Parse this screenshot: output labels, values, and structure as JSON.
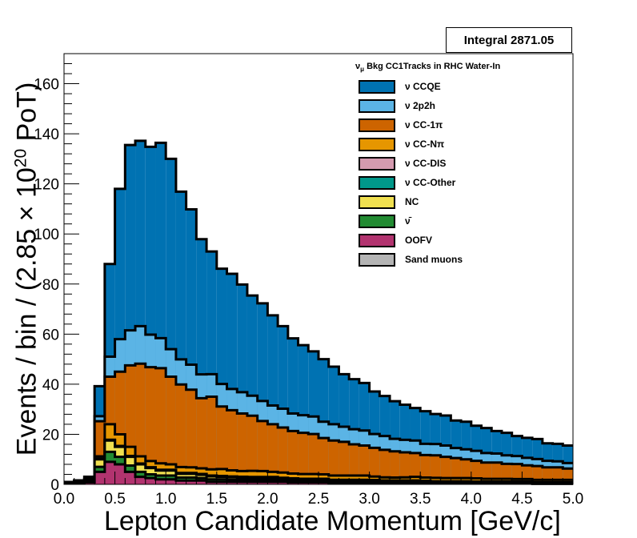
{
  "integral_box": {
    "text": "Integral 2871.05"
  },
  "legend": {
    "title_prefix": "ν",
    "title_sub": "μ",
    "title_rest": " Bkg CC1Tracks in RHC Water-In"
  },
  "y_title": {
    "before": "Events / bin / (2.85 × 10",
    "exp": "20",
    "after": " PoT)"
  },
  "chart_data": {
    "type": "bar",
    "stacked": true,
    "xlabel": "Lepton Candidate Momentum [GeV/c]",
    "ylabel": "Events / bin / (2.85 × 10^20 PoT)",
    "xlim": [
      0,
      5
    ],
    "ylim": [
      0,
      172
    ],
    "x_ticks": [
      "0.0",
      "0.5",
      "1.0",
      "1.5",
      "2.0",
      "2.5",
      "3.0",
      "3.5",
      "4.0",
      "4.5",
      "5.0"
    ],
    "y_ticks": [
      "0",
      "20",
      "40",
      "60",
      "80",
      "100",
      "120",
      "140",
      "160"
    ],
    "bin_edges": [
      0.0,
      0.1,
      0.2,
      0.3,
      0.4,
      0.5,
      0.6,
      0.7,
      0.8,
      0.9,
      1.0,
      1.1,
      1.2,
      1.3,
      1.4,
      1.5,
      1.6,
      1.7,
      1.8,
      1.9,
      2.0,
      2.1,
      2.2,
      2.3,
      2.4,
      2.5,
      2.6,
      2.7,
      2.8,
      2.9,
      3.0,
      3.1,
      3.2,
      3.3,
      3.4,
      3.5,
      3.6,
      3.7,
      3.8,
      3.9,
      4.0,
      4.1,
      4.2,
      4.3,
      4.4,
      4.5,
      4.6,
      4.7,
      4.8,
      4.9,
      5.0
    ],
    "series": [
      {
        "name": "Sand muons",
        "color": "#b4b4b4",
        "values": [
          0,
          0,
          0,
          0,
          0,
          0,
          0,
          0,
          0,
          0,
          0,
          0,
          0,
          0,
          0,
          0,
          0,
          0,
          0,
          0,
          0,
          0,
          0,
          0,
          0,
          0,
          0,
          0,
          0,
          0,
          0,
          0,
          0,
          0,
          0,
          0,
          0,
          0,
          0,
          0,
          0,
          0,
          0,
          0,
          0,
          0,
          0,
          0,
          0,
          0
        ]
      },
      {
        "name": "OOFV",
        "color": "#b2336f",
        "values": [
          0.3,
          0.5,
          0.8,
          5,
          9,
          8,
          5,
          3,
          2.5,
          2,
          2,
          1.5,
          1.5,
          1.5,
          1,
          1,
          1,
          1,
          1,
          1,
          1,
          1,
          0.8,
          0.8,
          0.8,
          0.8,
          0.6,
          0.6,
          0.6,
          0.6,
          0.5,
          0.5,
          0.5,
          0.5,
          0.5,
          0.4,
          0.4,
          0.4,
          0.4,
          0.4,
          0.3,
          0.3,
          0.3,
          0.3,
          0.3,
          0.3,
          0.2,
          0.2,
          0.2,
          0.2
        ]
      },
      {
        "name": "ν̄",
        "color": "#228b32",
        "values": [
          0.3,
          0.5,
          0.5,
          2,
          4,
          3,
          2.5,
          2,
          1.5,
          1.5,
          1.5,
          1.2,
          1.2,
          1,
          1,
          1,
          0.8,
          0.8,
          0.8,
          0.8,
          0.8,
          0.7,
          0.7,
          0.6,
          0.6,
          0.6,
          0.5,
          0.5,
          0.5,
          0.5,
          0.5,
          0.4,
          0.4,
          0.4,
          0.4,
          0.4,
          0.3,
          0.3,
          0.3,
          0.3,
          0.3,
          0.3,
          0.3,
          0.3,
          0.3,
          0.3,
          0.2,
          0.2,
          0.2,
          0.2
        ]
      },
      {
        "name": "NC",
        "color": "#f0e050",
        "values": [
          0.3,
          0.5,
          0.7,
          3,
          4.5,
          4,
          3.5,
          3,
          2.5,
          2,
          2,
          1.5,
          1.5,
          1.3,
          1.2,
          1,
          1,
          0.9,
          0.8,
          0.8,
          0.8,
          0.7,
          0.7,
          0.6,
          0.6,
          0.6,
          0.5,
          0.5,
          0.5,
          0.5,
          0.5,
          0.4,
          0.4,
          0.4,
          0.4,
          0.4,
          0.3,
          0.3,
          0.3,
          0.3,
          0.3,
          0.3,
          0.3,
          0.3,
          0.3,
          0.3,
          0.2,
          0.2,
          0.2,
          0.2
        ]
      },
      {
        "name": "ν CC-Other",
        "color": "#00988a",
        "values": [
          0,
          0,
          0,
          0.2,
          0.3,
          0.3,
          0.3,
          0.3,
          0.3,
          0.3,
          0.3,
          0.3,
          0.3,
          0.3,
          0.3,
          0.3,
          0.3,
          0.3,
          0.3,
          0.3,
          0.3,
          0.2,
          0.2,
          0.2,
          0.2,
          0.2,
          0.2,
          0.2,
          0.2,
          0.2,
          0.2,
          0.2,
          0.2,
          0.2,
          0.2,
          0.2,
          0.2,
          0.2,
          0.2,
          0.2,
          0.2,
          0.2,
          0.2,
          0.2,
          0.2,
          0.2,
          0.2,
          0.2,
          0.2,
          0.2
        ]
      },
      {
        "name": "ν CC-DIS",
        "color": "#d49aaf",
        "values": [
          0,
          0,
          0,
          0,
          0,
          0,
          0,
          0,
          0,
          0,
          0,
          0,
          0,
          0,
          0,
          0,
          0,
          0,
          0,
          0,
          0,
          0,
          0,
          0,
          0,
          0,
          0,
          0,
          0,
          0,
          0,
          0,
          0,
          0,
          0,
          0,
          0,
          0,
          0,
          0,
          0,
          0,
          0,
          0,
          0,
          0,
          0,
          0,
          0,
          0
        ]
      },
      {
        "name": "ν CC-Nπ",
        "color": "#e69600",
        "values": [
          0,
          0,
          0.3,
          1,
          6.2,
          4.7,
          3.7,
          2.9,
          2.5,
          2.6,
          2.2,
          2.4,
          2.3,
          2.3,
          2.5,
          2.8,
          2.5,
          2.3,
          2.5,
          2.4,
          2.1,
          2.1,
          1.9,
          1.9,
          1.9,
          1.8,
          1.7,
          1.7,
          1.7,
          1.7,
          1.4,
          1.3,
          1.2,
          1.3,
          1.5,
          1.3,
          1.4,
          1.3,
          1.3,
          1.3,
          1.3,
          1.1,
          1.1,
          1.1,
          1.0,
          1.0,
          1.0,
          1.0,
          1.0,
          1.0
        ]
      },
      {
        "name": "ν CC-1π",
        "color": "#cd6400",
        "values": [
          0,
          0,
          0.7,
          14,
          19,
          25,
          32.5,
          37,
          37.5,
          38,
          35,
          33,
          31,
          28,
          29,
          25,
          24,
          23,
          22,
          20,
          19,
          18,
          17,
          16.5,
          16,
          14.5,
          14,
          13.5,
          12.5,
          12,
          11.5,
          11,
          10.5,
          10,
          9.5,
          9,
          9,
          8.5,
          8,
          7.5,
          7,
          6.5,
          6.5,
          6,
          6,
          5.5,
          5.5,
          5,
          5,
          4.5
        ]
      },
      {
        "name": "ν 2p2h",
        "color": "#5bb4e5",
        "values": [
          0,
          0,
          0,
          2,
          8,
          13,
          14,
          15,
          13,
          12,
          11,
          10,
          10,
          9.5,
          9,
          9,
          8.5,
          8.5,
          8,
          8,
          7.5,
          7.5,
          7,
          7,
          7,
          6.5,
          6.5,
          6,
          6,
          6,
          5.5,
          5.5,
          5,
          5,
          5,
          4.5,
          4.5,
          4.5,
          4,
          4,
          4,
          3.8,
          3.6,
          3.4,
          3.2,
          3,
          2.8,
          2.6,
          2.4,
          2.2
        ]
      },
      {
        "name": "ν CCQE",
        "color": "#0072b2",
        "values": [
          0,
          0,
          0,
          12,
          37,
          60,
          74,
          74,
          75,
          78,
          76,
          67,
          62,
          54,
          49,
          46,
          46,
          43,
          40,
          39,
          36,
          33,
          30,
          28,
          26,
          25,
          23,
          21,
          20,
          19,
          17,
          16,
          15,
          14,
          13,
          13,
          12,
          12,
          11,
          11,
          10,
          10,
          9,
          9,
          8,
          8,
          8,
          7,
          7,
          7
        ]
      }
    ]
  }
}
